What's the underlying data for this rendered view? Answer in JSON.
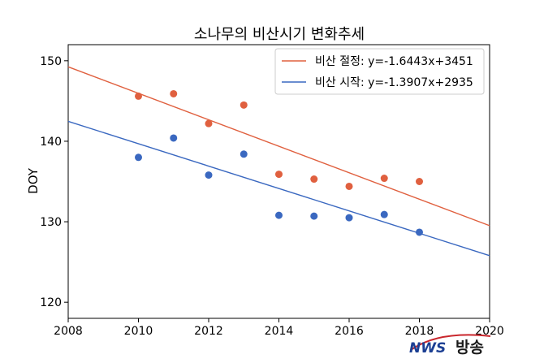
{
  "chart_data": {
    "type": "scatter",
    "title": "소나무의 비산시기 변화추세",
    "xlabel": "",
    "ylabel": "DOY",
    "xlim": [
      2008,
      2020
    ],
    "ylim": [
      118,
      152
    ],
    "xticks": [
      "2008",
      "2010",
      "2012",
      "2014",
      "2016",
      "2018",
      "2020"
    ],
    "yticks": [
      "120",
      "130",
      "140",
      "150"
    ],
    "legend_position": "top-right",
    "grid": false,
    "series": [
      {
        "name": "비산 절정: y=-1.6443x+3451",
        "color": "#e0603f",
        "trend_slope": -1.6443,
        "trend_intercept": 3451,
        "x": [
          2010,
          2011,
          2012,
          2013,
          2014,
          2015,
          2016,
          2017,
          2018
        ],
        "y": [
          145.6,
          145.9,
          142.2,
          144.5,
          135.9,
          135.3,
          134.4,
          135.4,
          135.0
        ]
      },
      {
        "name": "비산 시작: y=-1.3907x+2935",
        "color": "#3a68c0",
        "trend_slope": -1.3907,
        "trend_intercept": 2935,
        "x": [
          2010,
          2011,
          2012,
          2013,
          2014,
          2015,
          2016,
          2017,
          2018
        ],
        "y": [
          138.0,
          140.4,
          135.8,
          138.4,
          130.8,
          130.7,
          130.5,
          130.9,
          128.7
        ]
      }
    ]
  },
  "watermark": {
    "logo": "NWS",
    "text": "방송"
  }
}
